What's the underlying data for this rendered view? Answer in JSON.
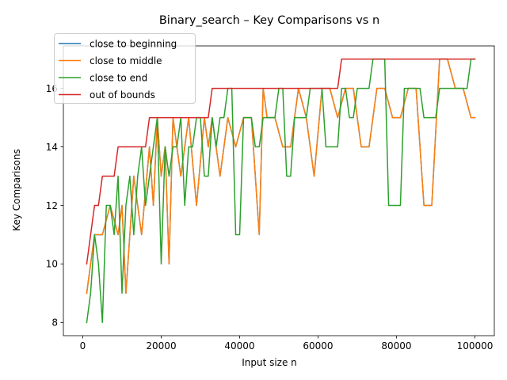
{
  "chart_data": {
    "type": "line",
    "title": "Binary_search – Key Comparisons vs n",
    "xlabel": "Input size n",
    "ylabel": "Key Comparisons",
    "xlim": [
      -4950,
      104950
    ],
    "ylim": [
      7.55,
      17.45
    ],
    "xticks": [
      0,
      20000,
      40000,
      60000,
      80000,
      100000
    ],
    "xtick_labels": [
      "0",
      "20000",
      "40000",
      "60000",
      "80000",
      "100000"
    ],
    "yticks": [
      8,
      10,
      12,
      14,
      16
    ],
    "ytick_labels": [
      "8",
      "10",
      "12",
      "14",
      "16"
    ],
    "grid": false,
    "legend_position": "top-left",
    "series": [
      {
        "name": "close to beginning",
        "color": "#1f77b4",
        "x": [
          1000,
          3000,
          5000,
          7000,
          9000,
          10000,
          11000,
          13000,
          15000,
          17000,
          18000,
          19000,
          20000,
          21000,
          22000,
          23000,
          25000,
          27000,
          29000,
          31000,
          32000,
          33000,
          35000,
          37000,
          39000,
          41000,
          43000,
          45000,
          46000,
          47000,
          49000,
          51000,
          53000,
          55000,
          57000,
          59000,
          61000,
          63000,
          65000,
          67000,
          69000,
          71000,
          73000,
          75000,
          77000,
          79000,
          81000,
          83000,
          85000,
          87000,
          89000,
          91000,
          93000,
          95000,
          97000,
          99000,
          100000
        ],
        "y": [
          9,
          11,
          11,
          12,
          11,
          12,
          9,
          13,
          11,
          14,
          12,
          15,
          13,
          14,
          10,
          15,
          13,
          15,
          12,
          15,
          14,
          15,
          13,
          15,
          14,
          15,
          15,
          11,
          16,
          15,
          15,
          14,
          14,
          16,
          15,
          13,
          16,
          16,
          15,
          16,
          16,
          14,
          14,
          16,
          16,
          15,
          15,
          16,
          16,
          12,
          12,
          17,
          17,
          16,
          16,
          15,
          15
        ]
      },
      {
        "name": "close to middle",
        "color": "#ff7f0e",
        "x": [
          1000,
          3000,
          5000,
          7000,
          9000,
          10000,
          11000,
          13000,
          15000,
          17000,
          18000,
          19000,
          20000,
          21000,
          22000,
          23000,
          25000,
          27000,
          29000,
          31000,
          32000,
          33000,
          35000,
          37000,
          39000,
          41000,
          43000,
          45000,
          46000,
          47000,
          49000,
          51000,
          53000,
          55000,
          57000,
          59000,
          61000,
          63000,
          65000,
          67000,
          69000,
          71000,
          73000,
          75000,
          77000,
          79000,
          81000,
          83000,
          85000,
          87000,
          89000,
          91000,
          93000,
          95000,
          97000,
          99000,
          100000
        ],
        "y": [
          9,
          11,
          11,
          12,
          11,
          12,
          9,
          13,
          11,
          14,
          12,
          15,
          13,
          14,
          10,
          15,
          13,
          15,
          12,
          15,
          14,
          15,
          13,
          15,
          14,
          15,
          15,
          11,
          16,
          15,
          15,
          14,
          14,
          16,
          15,
          13,
          16,
          16,
          15,
          16,
          16,
          14,
          14,
          16,
          16,
          15,
          15,
          16,
          16,
          12,
          12,
          17,
          17,
          16,
          16,
          15,
          15
        ]
      },
      {
        "name": "close to end",
        "color": "#2ca02c",
        "x": [
          1000,
          2000,
          3000,
          4000,
          5000,
          6000,
          7000,
          8000,
          9000,
          10000,
          11000,
          12000,
          13000,
          14000,
          15000,
          16000,
          17000,
          18000,
          19000,
          20000,
          21000,
          22000,
          23000,
          24000,
          25000,
          26000,
          27000,
          28000,
          29000,
          30000,
          31000,
          32000,
          33000,
          34000,
          35000,
          36000,
          37000,
          38000,
          39000,
          40000,
          41000,
          42000,
          43000,
          44000,
          45000,
          46000,
          47000,
          48000,
          49000,
          50000,
          51000,
          52000,
          53000,
          54000,
          55000,
          56000,
          57000,
          58000,
          59000,
          60000,
          61000,
          62000,
          63000,
          64000,
          65000,
          66000,
          67000,
          68000,
          69000,
          70000,
          71000,
          72000,
          73000,
          74000,
          75000,
          76000,
          77000,
          78000,
          79000,
          80000,
          81000,
          82000,
          83000,
          84000,
          85000,
          86000,
          87000,
          88000,
          89000,
          90000,
          91000,
          92000,
          93000,
          94000,
          95000,
          96000,
          97000,
          98000,
          99000,
          100000
        ],
        "y": [
          8,
          9,
          11,
          10,
          8,
          12,
          12,
          11,
          13,
          9,
          12,
          13,
          11,
          13,
          14,
          12,
          13,
          14,
          15,
          10,
          14,
          13,
          14,
          14,
          15,
          12,
          14,
          14,
          15,
          15,
          13,
          13,
          15,
          14,
          15,
          15,
          16,
          16,
          11,
          11,
          15,
          15,
          15,
          14,
          14,
          15,
          15,
          15,
          15,
          16,
          16,
          13,
          13,
          15,
          15,
          15,
          15,
          16,
          16,
          16,
          16,
          14,
          14,
          14,
          14,
          16,
          16,
          15,
          15,
          16,
          16,
          16,
          16,
          17,
          17,
          17,
          17,
          12,
          12,
          12,
          12,
          16,
          16,
          16,
          16,
          16,
          15,
          15,
          15,
          15,
          16,
          16,
          16,
          16,
          16,
          16,
          16,
          16,
          17,
          17
        ]
      },
      {
        "name": "out of bounds",
        "color": "#d62728",
        "x": [
          1000,
          2000,
          3000,
          4000,
          5000,
          7000,
          8000,
          9000,
          16000,
          17000,
          32000,
          33000,
          64000,
          65000,
          66000,
          100000
        ],
        "y": [
          10,
          11,
          12,
          12,
          13,
          13,
          13,
          14,
          14,
          15,
          15,
          16,
          16,
          16,
          17,
          17
        ]
      }
    ]
  }
}
